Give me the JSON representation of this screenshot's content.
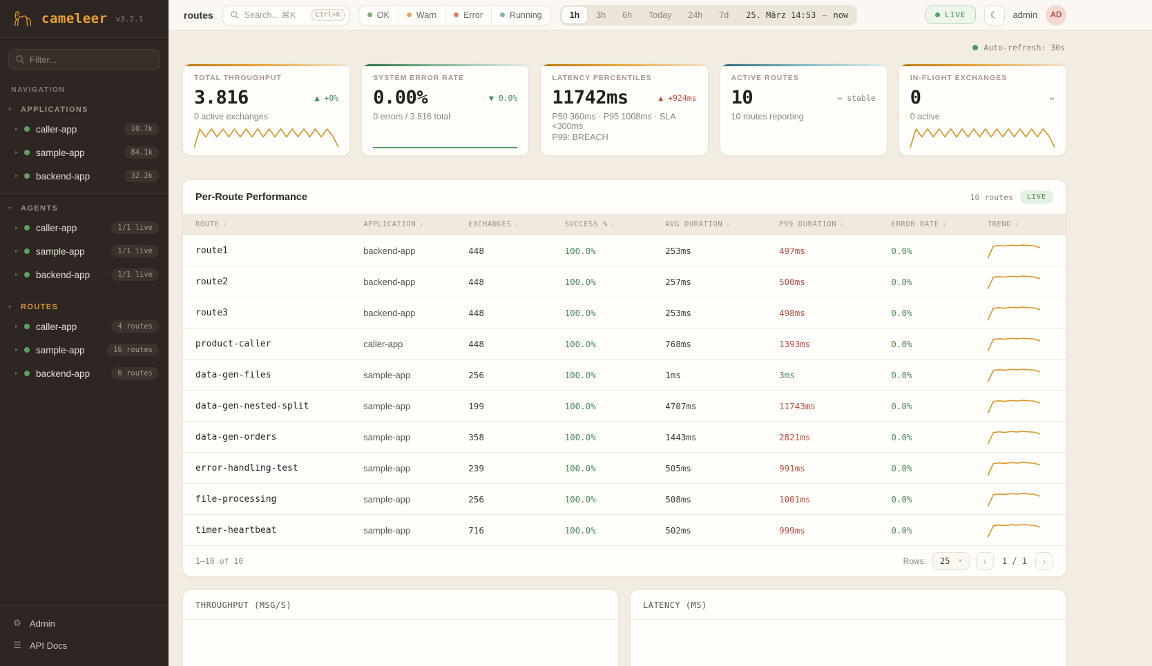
{
  "icons": {
    "caret_down": "▾",
    "caret_right": "▸",
    "sort": "↕",
    "moon": "☾",
    "gear": "⚙",
    "menu": "☰",
    "chev_left": "‹",
    "chev_right": "›",
    "select_caret": "▾",
    "up": "▲",
    "down": "▼",
    "stable": "⇔",
    "dot": "●"
  },
  "colors": {
    "accent_orange": "#e09a30",
    "spark_orange": "#d8921f",
    "spark_green": "#3f8a50",
    "ok": "#7fae79",
    "warn": "#dfa75c",
    "error": "#d97b70",
    "running": "#7fb7bb"
  },
  "sparks": {
    "zigzag": [
      4,
      88,
      52,
      88,
      52,
      88,
      52,
      88,
      52,
      88,
      52,
      88,
      52,
      88,
      52,
      88,
      52,
      88,
      52,
      88,
      52,
      88,
      52,
      88,
      56,
      4
    ],
    "flat": [
      4,
      4
    ],
    "trend": [
      4,
      76,
      80,
      77,
      82,
      79,
      83,
      80,
      78,
      66
    ]
  },
  "sidebar": {
    "logo": {
      "name": "cameleer",
      "version": "v3.2.1"
    },
    "filter_placeholder": "Filter...",
    "nav_label": "NAVIGATION",
    "sections": [
      {
        "label": "APPLICATIONS",
        "active": false,
        "items": [
          {
            "label": "caller-app",
            "badge": "10.7k"
          },
          {
            "label": "sample-app",
            "badge": "84.1k"
          },
          {
            "label": "backend-app",
            "badge": "32.2k"
          }
        ]
      },
      {
        "label": "AGENTS",
        "active": false,
        "items": [
          {
            "label": "caller-app",
            "badge": "1/1 live"
          },
          {
            "label": "sample-app",
            "badge": "1/1 live"
          },
          {
            "label": "backend-app",
            "badge": "1/1 live"
          }
        ]
      },
      {
        "label": "ROUTES",
        "active": true,
        "items": [
          {
            "label": "caller-app",
            "badge": "4 routes"
          },
          {
            "label": "sample-app",
            "badge": "16 routes"
          },
          {
            "label": "backend-app",
            "badge": "6 routes"
          }
        ]
      }
    ],
    "footer": [
      {
        "label": "Admin",
        "icon": "gear"
      },
      {
        "label": "API Docs",
        "icon": "menu"
      }
    ]
  },
  "topbar": {
    "breadcrumb": "routes",
    "search": {
      "placeholder": "Search... ⌘K",
      "kbd": "Ctrl+K"
    },
    "status_filters": [
      {
        "label": "OK",
        "color": "#7fae79"
      },
      {
        "label": "Warn",
        "color": "#dfa75c"
      },
      {
        "label": "Error",
        "color": "#d97b70"
      },
      {
        "label": "Running",
        "color": "#7fb7bb"
      }
    ],
    "time_ranges": [
      "1h",
      "3h",
      "6h",
      "Today",
      "24h",
      "7d"
    ],
    "active_range": "1h",
    "date_range": {
      "from": "25. März 14:53",
      "sep": "—",
      "to": "now"
    },
    "live_label": "LIVE",
    "user": "admin",
    "avatar": "AD"
  },
  "autorefresh": "Auto-refresh: 30s",
  "kpis": [
    {
      "title": "TOTAL THROUGHPUT",
      "value": "3.816",
      "delta_icon": "▲",
      "delta": "+0%",
      "delta_color": "green",
      "subtitle": "0 active exchanges",
      "subtitle2": "",
      "accent": "orange",
      "spark": "zigzag",
      "spark_color": "#d8921f"
    },
    {
      "title": "SYSTEM ERROR RATE",
      "value": "0.00%",
      "delta_icon": "▼",
      "delta": "0.0%",
      "delta_color": "green",
      "subtitle": "0 errors / 3.816 total",
      "subtitle2": "",
      "accent": "green",
      "spark": "flat",
      "spark_color": "#3f8a50"
    },
    {
      "title": "LATENCY PERCENTILES",
      "value": "11742ms",
      "delta_icon": "▲",
      "delta": "+924ms",
      "delta_color": "red",
      "subtitle": "P50 360ms · P95 1008ms · SLA <300ms",
      "subtitle2": "P99: BREACH",
      "accent": "orange",
      "spark": null,
      "spark_color": ""
    },
    {
      "title": "ACTIVE ROUTES",
      "value": "10",
      "delta_icon": "⇔",
      "delta": "stable",
      "delta_color": "gray",
      "subtitle": "10 routes reporting",
      "subtitle2": "",
      "accent": "teal",
      "spark": null,
      "spark_color": ""
    },
    {
      "title": "IN-FLIGHT EXCHANGES",
      "value": "0",
      "delta_icon": "⇔",
      "delta": "",
      "delta_color": "gray",
      "subtitle": "0 active",
      "subtitle2": "",
      "accent": "orange",
      "spark": "zigzag",
      "spark_color": "#d8921f"
    }
  ],
  "table": {
    "title": "Per-Route Performance",
    "count_label": "10 routes",
    "live_label": "LIVE",
    "columns": [
      "ROUTE",
      "APPLICATION",
      "EXCHANGES",
      "SUCCESS %",
      "AVG DURATION",
      "P99 DURATION",
      "ERROR RATE",
      "TREND"
    ],
    "rows": [
      {
        "route": "route1",
        "app": "backend-app",
        "exchanges": "448",
        "success": "100.0%",
        "avg": "253ms",
        "p99": "497ms",
        "p99_status": "bad",
        "error": "0.0%"
      },
      {
        "route": "route2",
        "app": "backend-app",
        "exchanges": "448",
        "success": "100.0%",
        "avg": "257ms",
        "p99": "500ms",
        "p99_status": "bad",
        "error": "0.0%"
      },
      {
        "route": "route3",
        "app": "backend-app",
        "exchanges": "448",
        "success": "100.0%",
        "avg": "253ms",
        "p99": "498ms",
        "p99_status": "bad",
        "error": "0.0%"
      },
      {
        "route": "product-caller",
        "app": "caller-app",
        "exchanges": "448",
        "success": "100.0%",
        "avg": "768ms",
        "p99": "1393ms",
        "p99_status": "bad",
        "error": "0.0%"
      },
      {
        "route": "data-gen-files",
        "app": "sample-app",
        "exchanges": "256",
        "success": "100.0%",
        "avg": "1ms",
        "p99": "3ms",
        "p99_status": "good",
        "error": "0.0%"
      },
      {
        "route": "data-gen-nested-split",
        "app": "sample-app",
        "exchanges": "199",
        "success": "100.0%",
        "avg": "4707ms",
        "p99": "11743ms",
        "p99_status": "bad",
        "error": "0.0%"
      },
      {
        "route": "data-gen-orders",
        "app": "sample-app",
        "exchanges": "358",
        "success": "100.0%",
        "avg": "1443ms",
        "p99": "2821ms",
        "p99_status": "bad",
        "error": "0.0%"
      },
      {
        "route": "error-handling-test",
        "app": "sample-app",
        "exchanges": "239",
        "success": "100.0%",
        "avg": "505ms",
        "p99": "991ms",
        "p99_status": "bad",
        "error": "0.0%"
      },
      {
        "route": "file-processing",
        "app": "sample-app",
        "exchanges": "256",
        "success": "100.0%",
        "avg": "508ms",
        "p99": "1001ms",
        "p99_status": "bad",
        "error": "0.0%"
      },
      {
        "route": "timer-heartbeat",
        "app": "sample-app",
        "exchanges": "716",
        "success": "100.0%",
        "avg": "502ms",
        "p99": "999ms",
        "p99_status": "bad",
        "error": "0.0%"
      }
    ],
    "pagination": {
      "range_label": "1–10 of 10",
      "rows_label": "Rows:",
      "rows_value": "25",
      "page_label": "1 / 1"
    }
  },
  "charts": [
    {
      "title": "THROUGHPUT (MSG/S)"
    },
    {
      "title": "LATENCY (MS)"
    }
  ]
}
